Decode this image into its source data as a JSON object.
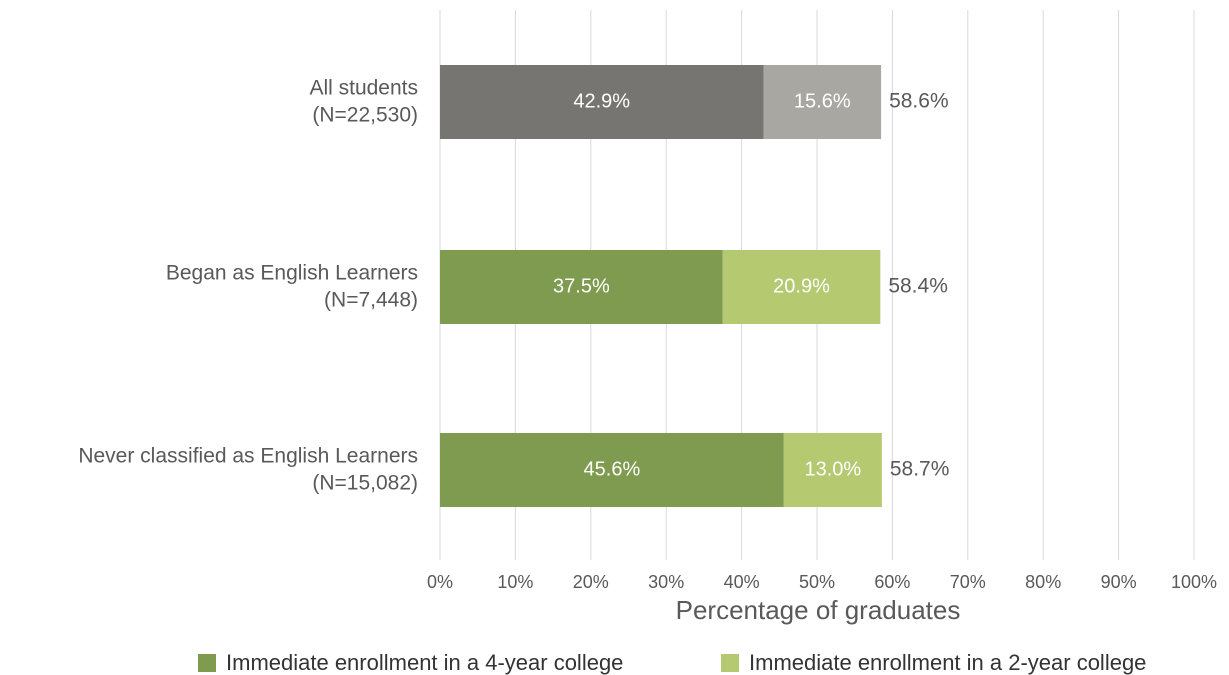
{
  "chart_data": {
    "type": "stacked-barh",
    "categories": [
      [
        "All students",
        "(N=22,530)"
      ],
      [
        "Began as English Learners",
        "(N=7,448)"
      ],
      [
        "Never classified as English Learners",
        "(N=15,082)"
      ]
    ],
    "series": [
      {
        "name": "Immediate enrollment in a 4-year college",
        "color": "#7f9b50",
        "colors": [
          "#767572",
          "#7f9b50",
          "#7f9b50"
        ],
        "values": [
          42.9,
          37.5,
          45.6
        ],
        "value_labels": [
          "42.9%",
          "37.5%",
          "45.6%"
        ]
      },
      {
        "name": "Immediate enrollment in a 2-year college",
        "color": "#b5c971",
        "colors": [
          "#a8a7a1",
          "#b5c971",
          "#b5c971"
        ],
        "values": [
          15.6,
          20.9,
          13.0
        ],
        "value_labels": [
          "15.6%",
          "20.9%",
          "13.0%"
        ]
      }
    ],
    "totals": [
      58.6,
      58.4,
      58.7
    ],
    "total_labels": [
      "58.6%",
      "58.4%",
      "58.7%"
    ],
    "xlabel": "Percentage of graduates",
    "xlim": [
      0,
      100
    ],
    "xticks": [
      {
        "value": 0,
        "label": "0%"
      },
      {
        "value": 10,
        "label": "10%"
      },
      {
        "value": 20,
        "label": "20%"
      },
      {
        "value": 30,
        "label": "30%"
      },
      {
        "value": 40,
        "label": "40%"
      },
      {
        "value": 50,
        "label": "50%"
      },
      {
        "value": 60,
        "label": "60%"
      },
      {
        "value": 70,
        "label": "70%"
      },
      {
        "value": 80,
        "label": "80%"
      },
      {
        "value": 90,
        "label": "90%"
      },
      {
        "value": 100,
        "label": "100%"
      }
    ],
    "grid": true,
    "legend": "bottom"
  }
}
